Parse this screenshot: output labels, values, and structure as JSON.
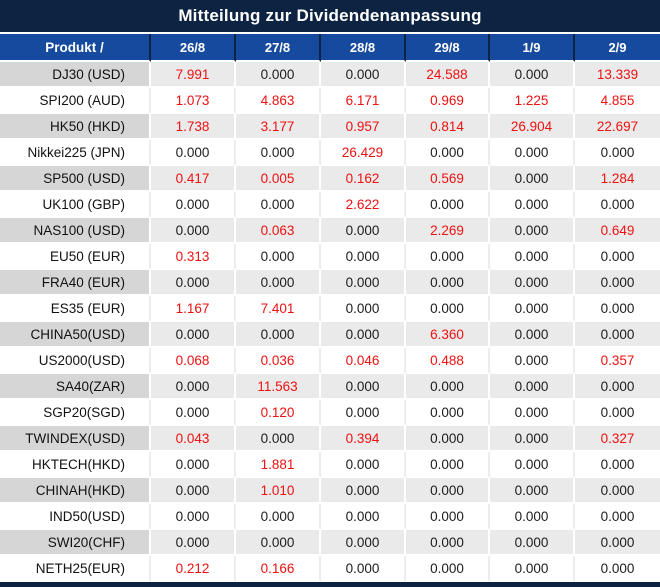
{
  "title": "Mitteilung zur Dividendenanpassung",
  "table": {
    "product_header": "Produkt /",
    "date_columns": [
      "26/8",
      "27/8",
      "28/8",
      "29/8",
      "1/9",
      "2/9"
    ],
    "rows": [
      {
        "product": "DJ30 (USD)",
        "values": [
          "7.991",
          "0.000",
          "0.000",
          "24.588",
          "0.000",
          "13.339"
        ]
      },
      {
        "product": "SPI200 (AUD)",
        "values": [
          "1.073",
          "4.863",
          "6.171",
          "0.969",
          "1.225",
          "4.855"
        ]
      },
      {
        "product": "HK50 (HKD)",
        "values": [
          "1.738",
          "3.177",
          "0.957",
          "0.814",
          "26.904",
          "22.697"
        ]
      },
      {
        "product": "Nikkei225 (JPN)",
        "values": [
          "0.000",
          "0.000",
          "26.429",
          "0.000",
          "0.000",
          "0.000"
        ]
      },
      {
        "product": "SP500 (USD)",
        "values": [
          "0.417",
          "0.005",
          "0.162",
          "0.569",
          "0.000",
          "1.284"
        ]
      },
      {
        "product": "UK100 (GBP)",
        "values": [
          "0.000",
          "0.000",
          "2.622",
          "0.000",
          "0.000",
          "0.000"
        ]
      },
      {
        "product": "NAS100 (USD)",
        "values": [
          "0.000",
          "0.063",
          "0.000",
          "2.269",
          "0.000",
          "0.649"
        ]
      },
      {
        "product": "EU50 (EUR)",
        "values": [
          "0.313",
          "0.000",
          "0.000",
          "0.000",
          "0.000",
          "0.000"
        ]
      },
      {
        "product": "FRA40 (EUR)",
        "values": [
          "0.000",
          "0.000",
          "0.000",
          "0.000",
          "0.000",
          "0.000"
        ]
      },
      {
        "product": "ES35 (EUR)",
        "values": [
          "1.167",
          "7.401",
          "0.000",
          "0.000",
          "0.000",
          "0.000"
        ]
      },
      {
        "product": "CHINA50(USD)",
        "values": [
          "0.000",
          "0.000",
          "0.000",
          "6.360",
          "0.000",
          "0.000"
        ]
      },
      {
        "product": "US2000(USD)",
        "values": [
          "0.068",
          "0.036",
          "0.046",
          "0.488",
          "0.000",
          "0.357"
        ]
      },
      {
        "product": "SA40(ZAR)",
        "values": [
          "0.000",
          "11.563",
          "0.000",
          "0.000",
          "0.000",
          "0.000"
        ]
      },
      {
        "product": "SGP20(SGD)",
        "values": [
          "0.000",
          "0.120",
          "0.000",
          "0.000",
          "0.000",
          "0.000"
        ]
      },
      {
        "product": "TWINDEX(USD)",
        "values": [
          "0.043",
          "0.000",
          "0.394",
          "0.000",
          "0.000",
          "0.327"
        ]
      },
      {
        "product": "HKTECH(HKD)",
        "values": [
          "0.000",
          "1.881",
          "0.000",
          "0.000",
          "0.000",
          "0.000"
        ]
      },
      {
        "product": "CHINAH(HKD)",
        "values": [
          "0.000",
          "1.010",
          "0.000",
          "0.000",
          "0.000",
          "0.000"
        ]
      },
      {
        "product": "IND50(USD)",
        "values": [
          "0.000",
          "0.000",
          "0.000",
          "0.000",
          "0.000",
          "0.000"
        ]
      },
      {
        "product": "SWI20(CHF)",
        "values": [
          "0.000",
          "0.000",
          "0.000",
          "0.000",
          "0.000",
          "0.000"
        ]
      },
      {
        "product": "NETH25(EUR)",
        "values": [
          "0.212",
          "0.166",
          "0.000",
          "0.000",
          "0.000",
          "0.000"
        ]
      }
    ]
  },
  "colors": {
    "title_bar": "#0d2342",
    "header_row": "#164a9e",
    "stripe_product": "#d6d6d6",
    "stripe_value": "#eaeaea",
    "positive_value": "#ee1111",
    "zero_value": "#1c1c1c"
  }
}
